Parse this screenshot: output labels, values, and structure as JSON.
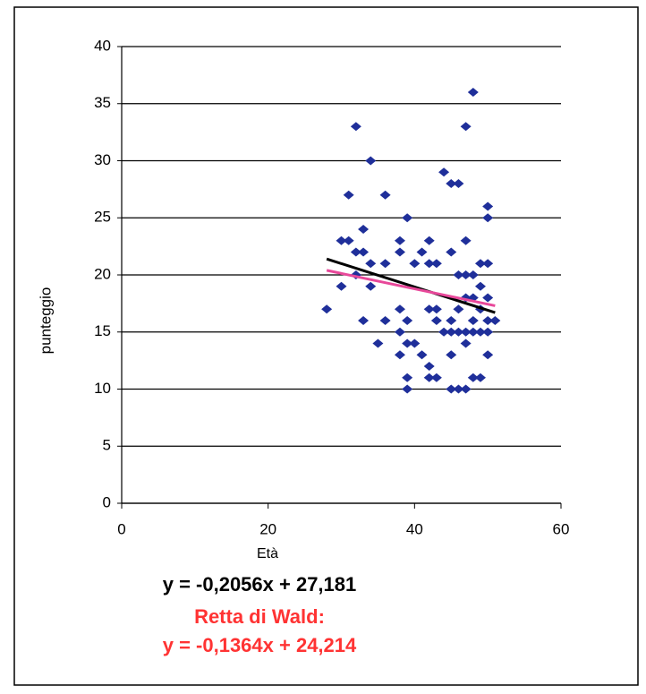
{
  "chart_data": {
    "type": "scatter",
    "x_label": "Età",
    "y_label": "punteggio",
    "annotations": [
      "y = -0,2056x + 27,181",
      "Retta di Wald:",
      "y = -0,1364x + 24,214"
    ],
    "annotation_colors": [
      "#000000",
      "#ff3333",
      "#ff3333"
    ],
    "xlim": [
      0,
      60
    ],
    "xticks": [
      0,
      20,
      40,
      60
    ],
    "ylim": [
      0,
      40
    ],
    "yticks": [
      0,
      5,
      10,
      15,
      20,
      25,
      30,
      35,
      40
    ],
    "grid": true,
    "series": [
      {
        "color": "#1f2f9a",
        "x": [
          28,
          32,
          34,
          31,
          36,
          30,
          31,
          33,
          32,
          33,
          34,
          36,
          30,
          32,
          34,
          33,
          35,
          36,
          38,
          38,
          39,
          38,
          39,
          38,
          38,
          39,
          39,
          39,
          40,
          41,
          40,
          41,
          42,
          42,
          43,
          42,
          43,
          43,
          42,
          42,
          43,
          44,
          45,
          46,
          45,
          44,
          45,
          46,
          45,
          45,
          45,
          46,
          47,
          47,
          48,
          47,
          46,
          47,
          48,
          46,
          47,
          48,
          47,
          47,
          48,
          49,
          48,
          49,
          48,
          49,
          49,
          50,
          49,
          50,
          50,
          50,
          50,
          51,
          50,
          50
        ],
        "values": [
          17,
          33,
          30,
          27,
          27,
          23,
          23,
          24,
          22,
          22,
          21,
          21,
          19,
          20,
          19,
          16,
          14,
          16,
          23,
          22,
          25,
          17,
          16,
          15,
          13,
          14,
          11,
          10,
          21,
          22,
          14,
          13,
          23,
          21,
          21,
          17,
          17,
          16,
          12,
          11,
          11,
          29,
          28,
          28,
          22,
          15,
          15,
          15,
          13,
          16,
          10,
          10,
          10,
          33,
          36,
          23,
          20,
          20,
          20,
          17,
          18,
          18,
          14,
          15,
          15,
          15,
          16,
          17,
          11,
          11,
          21,
          21,
          19,
          26,
          25,
          18,
          16,
          16,
          13,
          15
        ]
      }
    ],
    "trendlines": [
      {
        "color": "#000000",
        "x": [
          28,
          51
        ],
        "values": [
          21.4,
          16.7
        ]
      },
      {
        "color": "#e8489a",
        "x": [
          28,
          51
        ],
        "values": [
          20.4,
          17.3
        ]
      }
    ]
  }
}
